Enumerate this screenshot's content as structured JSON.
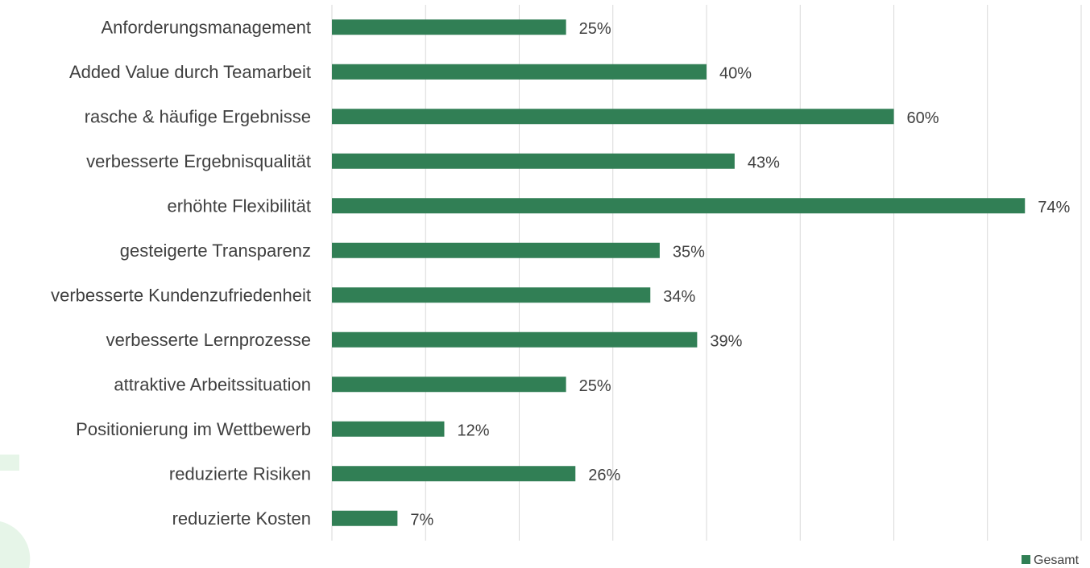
{
  "chart_data": {
    "type": "bar",
    "orientation": "horizontal",
    "categories": [
      "Anforderungsmanagement",
      "Added Value durch Teamarbeit",
      "rasche & häufige Ergebnisse",
      "verbesserte Ergebnisqualität",
      "erhöhte Flexibilität",
      "gesteigerte Transparenz",
      "verbesserte Kundenzufriedenheit",
      "verbesserte Lernprozesse",
      "attraktive Arbeitssituation",
      "Positionierung im Wettbewerb",
      "reduzierte Risiken",
      "reduzierte Kosten"
    ],
    "series": [
      {
        "name": "Gesamt",
        "values": [
          25,
          40,
          60,
          43,
          74,
          35,
          34,
          39,
          25,
          12,
          26,
          7
        ],
        "labels": [
          "25%",
          "40%",
          "60%",
          "43%",
          "74%",
          "35%",
          "34%",
          "39%",
          "25%",
          "12%",
          "26%",
          "7%"
        ],
        "color": "#317f55"
      }
    ],
    "xlim": [
      0,
      80
    ],
    "grid": true,
    "gridline_step": 10,
    "legend_position": "bottom-right",
    "title": "",
    "xlabel": "",
    "ylabel": ""
  },
  "colors": {
    "bar": "#317f55",
    "grid": "#d9d9d9",
    "text": "#404040",
    "decoration": "#e6f5e8"
  }
}
